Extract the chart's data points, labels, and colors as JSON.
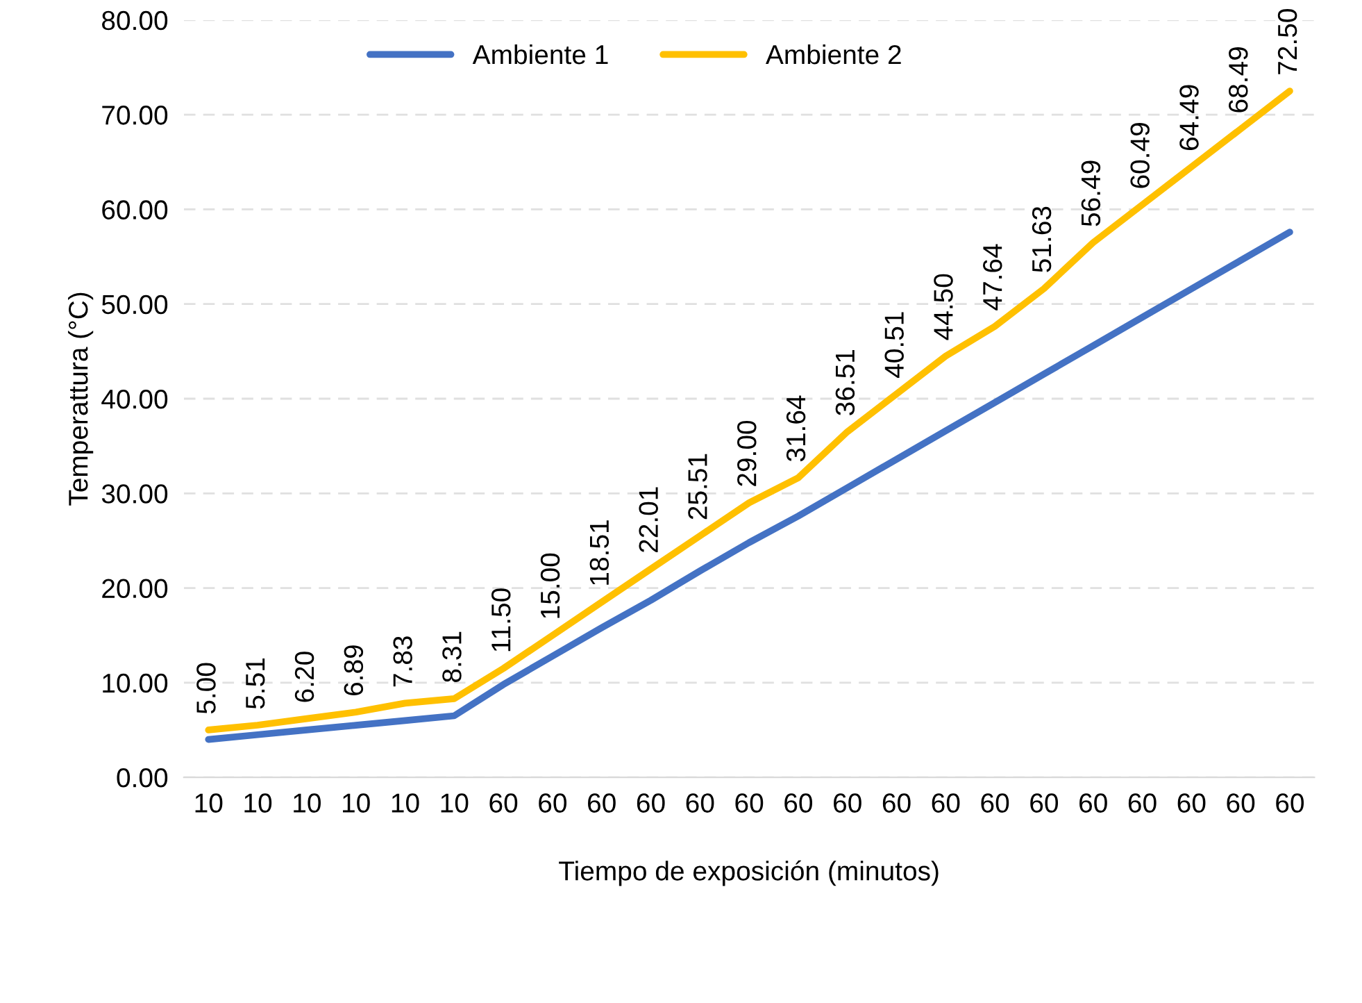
{
  "chart_data": {
    "type": "line",
    "xlabel": "Tiempo de exposición (minutos)",
    "ylabel": "Temperattura (°C)",
    "categories": [
      "10",
      "10",
      "10",
      "10",
      "10",
      "10",
      "60",
      "60",
      "60",
      "60",
      "60",
      "60",
      "60",
      "60",
      "60",
      "60",
      "60",
      "60",
      "60",
      "60",
      "60",
      "60",
      "60"
    ],
    "series": [
      {
        "name": "Ambiente 1",
        "color": "#4472c4",
        "values": [
          4.0,
          4.5,
          5.0,
          5.5,
          6.0,
          6.5,
          9.8,
          12.8,
          15.8,
          18.7,
          21.8,
          24.8,
          27.6,
          30.6,
          33.6,
          36.6,
          39.6,
          42.6,
          45.6,
          48.6,
          51.6,
          54.6,
          57.6
        ]
      },
      {
        "name": "Ambiente 2",
        "color": "#ffc000",
        "values": [
          5.0,
          5.51,
          6.2,
          6.89,
          7.83,
          8.31,
          11.5,
          15.0,
          18.51,
          22.01,
          25.51,
          29.0,
          31.64,
          36.51,
          40.51,
          44.5,
          47.64,
          51.63,
          56.49,
          60.49,
          64.49,
          68.49,
          72.5
        ],
        "value_labels": [
          "5.00",
          "5.51",
          "6.20",
          "6.89",
          "7.83",
          "8.31",
          "11.50",
          "15.00",
          "18.51",
          "22.01",
          "25.51",
          "29.00",
          "31.64",
          "36.51",
          "40.51",
          "44.50",
          "47.64",
          "51.63",
          "56.49",
          "60.49",
          "64.49",
          "68.49",
          "72.50"
        ]
      }
    ],
    "ylim": [
      0,
      80
    ],
    "yticks": [
      {
        "value": 0,
        "label": "0.00"
      },
      {
        "value": 10,
        "label": "10.00"
      },
      {
        "value": 20,
        "label": "20.00"
      },
      {
        "value": 30,
        "label": "30.00"
      },
      {
        "value": 40,
        "label": "40.00"
      },
      {
        "value": 50,
        "label": "50.00"
      },
      {
        "value": 60,
        "label": "60.00"
      },
      {
        "value": 70,
        "label": "70.00"
      },
      {
        "value": 80,
        "label": "80.00"
      }
    ],
    "grid": "y",
    "legend": "top",
    "marker": "none",
    "line_style": "solid"
  }
}
